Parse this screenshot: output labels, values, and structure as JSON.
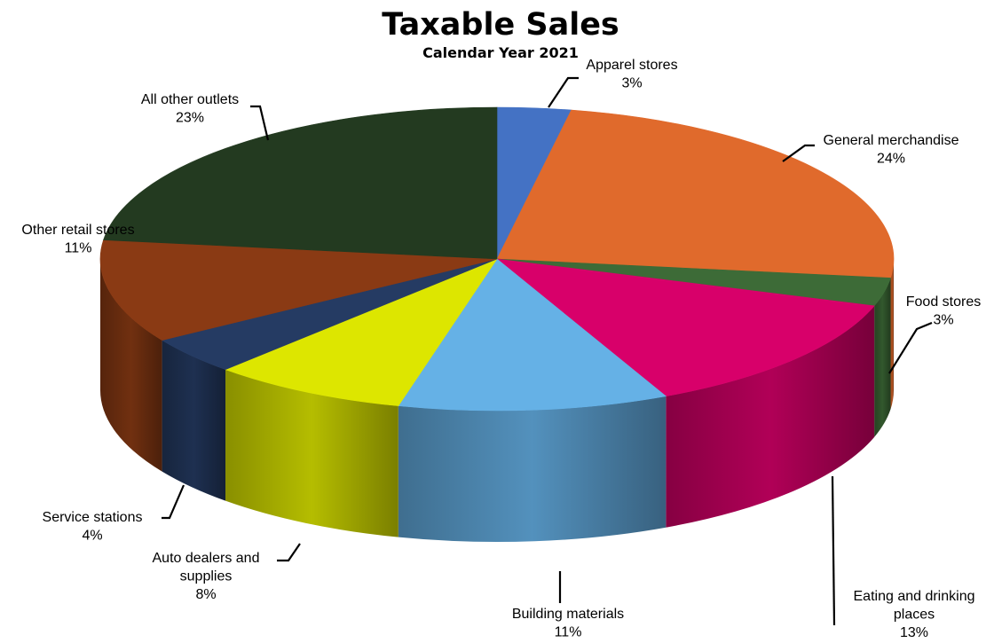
{
  "chart_data": {
    "type": "pie",
    "title": "Taxable Sales",
    "subtitle": "Calendar Year 2021",
    "legend": "none",
    "slices": [
      {
        "label": "Apparel stores",
        "value": 3,
        "value_label": "3%",
        "color": "#4472C4"
      },
      {
        "label": "General merchandise",
        "value": 24,
        "value_label": "24%",
        "color": "#E06A2C"
      },
      {
        "label": "Food stores",
        "value": 3,
        "value_label": "3%",
        "color": "#3D6B37"
      },
      {
        "label": "Eating and drinking places",
        "value": 13,
        "value_label": "13%",
        "color": "#D8006A",
        "label_lines": [
          "Eating and drinking",
          "places"
        ]
      },
      {
        "label": "Building materials",
        "value": 11,
        "value_label": "11%",
        "color": "#65B1E6"
      },
      {
        "label": "Auto dealers and supplies",
        "value": 8,
        "value_label": "8%",
        "color": "#DDE600",
        "label_lines": [
          "Auto dealers and",
          "supplies"
        ]
      },
      {
        "label": "Service stations",
        "value": 4,
        "value_label": "4%",
        "color": "#253B63"
      },
      {
        "label": "Other retail stores",
        "value": 11,
        "value_label": "11%",
        "color": "#8A3A14"
      },
      {
        "label": "All other outlets",
        "value": 23,
        "value_label": "23%",
        "color": "#233A20"
      }
    ]
  }
}
